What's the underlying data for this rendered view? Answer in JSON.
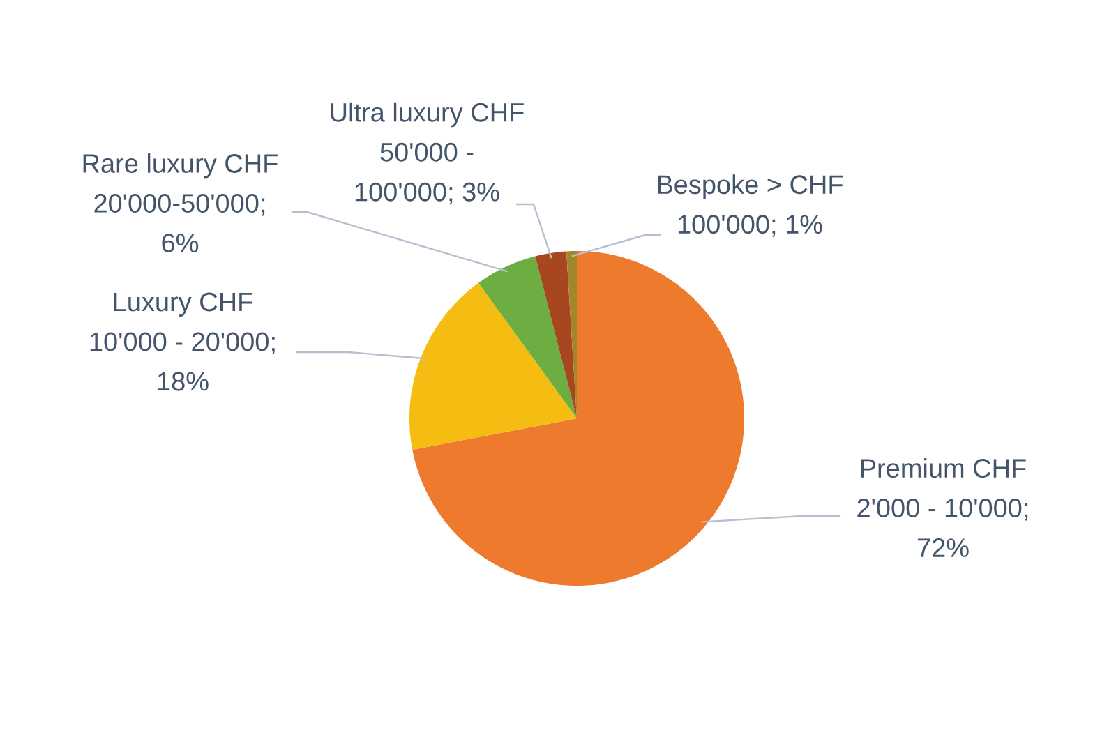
{
  "chart_data": {
    "type": "pie",
    "categories": [
      "Premium CHF 2'000 - 10'000",
      "Luxury CHF 10'000 - 20'000",
      "Rare luxury CHF 20'000-50'000",
      "Ultra luxury CHF 50'000 - 100'000",
      "Bespoke > CHF 100'000"
    ],
    "values": [
      72,
      18,
      6,
      3,
      1
    ],
    "value_labels": [
      "; 72%",
      "; 18%",
      "; 6%",
      "; 3%",
      "; 1%"
    ],
    "colors": [
      "#ee7a2e",
      "#f5bd12",
      "#6cae41",
      "#a8461f",
      "#a3862a"
    ]
  }
}
